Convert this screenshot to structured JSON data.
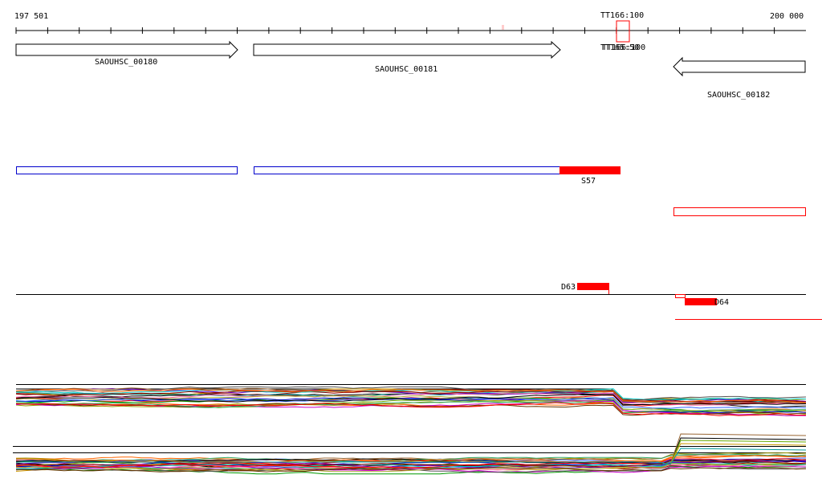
{
  "ruler": {
    "start_label": "197 501",
    "end_label": "200 000",
    "marker_label": "TT166:100",
    "marker_overlap_label": "TT165:50"
  },
  "genes": [
    {
      "name": "SAOUHSC_00180",
      "strand": "+"
    },
    {
      "name": "SAOUHSC_00181",
      "strand": "+"
    },
    {
      "name": "SAOUHSC_00182",
      "strand": "-"
    }
  ],
  "features": {
    "segment_label_s57": "S57",
    "segment_label_d63": "D63",
    "segment_label_d64": "D64"
  },
  "colors": {
    "gene_outline": "#000000",
    "cds_outline": "#0000cc",
    "highlight": "#ff0000",
    "axis": "#000000"
  },
  "tracks": {
    "upper_profile_count": 24,
    "lower_profile_count": 24,
    "palette": [
      "#000000",
      "#8b0000",
      "#ff0000",
      "#ff6600",
      "#cc9900",
      "#999900",
      "#66aa00",
      "#009900",
      "#009999",
      "#0000cc",
      "#6600cc",
      "#cc00cc",
      "#996633",
      "#555555",
      "#ff66aa",
      "#00cccc",
      "#aaaa33",
      "#3366ff",
      "#663300",
      "#33aa66"
    ]
  }
}
